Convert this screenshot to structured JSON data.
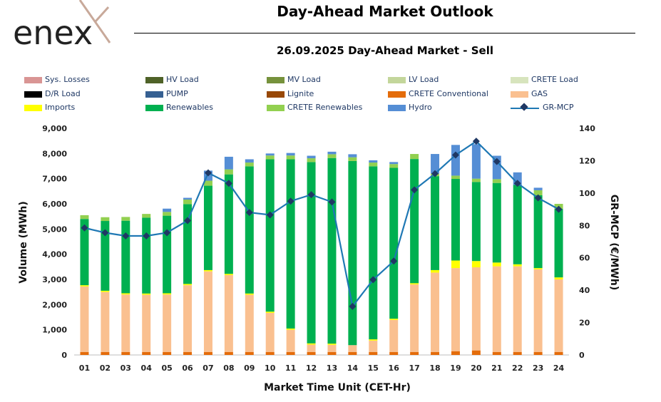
{
  "header": {
    "logo_text": "enex",
    "title": "Day-Ahead Market Outlook",
    "subtitle": "26.09.2025  Day-Ahead Market - Sell"
  },
  "colors": {
    "sys_losses": "#d99594",
    "hv_load": "#4f6228",
    "mv_load": "#76923c",
    "lv_load": "#c3d69b",
    "crete_load": "#d7e4bd",
    "dr_load": "#000000",
    "pump": "#366092",
    "lignite": "#984807",
    "crete_conventional": "#e46c0a",
    "gas": "#fac090",
    "imports": "#ffff00",
    "renewables": "#00b050",
    "crete_renewables": "#92d050",
    "hydro": "#558ed5",
    "gr_mcp": "#1f78b4",
    "gr_mcp_marker": "#1f3864"
  },
  "legend": [
    {
      "key": "sys_losses",
      "label": "Sys. Losses",
      "type": "bar"
    },
    {
      "key": "hv_load",
      "label": "HV Load",
      "type": "bar"
    },
    {
      "key": "mv_load",
      "label": "MV Load",
      "type": "bar"
    },
    {
      "key": "lv_load",
      "label": "LV Load",
      "type": "bar"
    },
    {
      "key": "crete_load",
      "label": "CRETE Load",
      "type": "bar"
    },
    {
      "key": "dr_load",
      "label": "D/R Load",
      "type": "bar"
    },
    {
      "key": "pump",
      "label": "PUMP",
      "type": "bar"
    },
    {
      "key": "lignite",
      "label": "Lignite",
      "type": "bar"
    },
    {
      "key": "crete_conventional",
      "label": "CRETE Conventional",
      "type": "bar"
    },
    {
      "key": "gas",
      "label": "GAS",
      "type": "bar"
    },
    {
      "key": "imports",
      "label": "Imports",
      "type": "bar"
    },
    {
      "key": "renewables",
      "label": "Renewables",
      "type": "bar"
    },
    {
      "key": "crete_renewables",
      "label": "CRETE Renewables",
      "type": "bar"
    },
    {
      "key": "hydro",
      "label": "Hydro",
      "type": "bar"
    },
    {
      "key": "gr_mcp",
      "label": "GR-MCP",
      "type": "line"
    }
  ],
  "chart_data": {
    "type": "bar",
    "stacked": true,
    "xlabel": "Market Time Unit (CET-Hr)",
    "ylabel": "Volume (MWh)",
    "y2label": "GR-MCP (€/MWh)",
    "ylim": [
      0,
      9000
    ],
    "y2lim": [
      0,
      140
    ],
    "yticks": [
      "0",
      "1,000",
      "2,000",
      "3,000",
      "4,000",
      "5,000",
      "6,000",
      "7,000",
      "8,000",
      "9,000"
    ],
    "y2ticks": [
      "0",
      "20",
      "40",
      "60",
      "80",
      "100",
      "120",
      "140"
    ],
    "categories": [
      "01",
      "02",
      "03",
      "04",
      "05",
      "06",
      "07",
      "08",
      "09",
      "10",
      "11",
      "12",
      "13",
      "14",
      "15",
      "16",
      "17",
      "18",
      "19",
      "20",
      "21",
      "22",
      "23",
      "24"
    ],
    "series": [
      {
        "name": "Sys. Losses",
        "key": "sys_losses",
        "values": [
          0,
          0,
          0,
          0,
          0,
          0,
          0,
          0,
          0,
          0,
          0,
          0,
          0,
          0,
          0,
          0,
          0,
          0,
          0,
          0,
          0,
          0,
          0,
          0
        ]
      },
      {
        "name": "HV Load",
        "key": "hv_load",
        "values": [
          0,
          0,
          0,
          0,
          0,
          0,
          0,
          0,
          0,
          0,
          0,
          0,
          0,
          0,
          0,
          0,
          0,
          0,
          0,
          0,
          0,
          0,
          0,
          0
        ]
      },
      {
        "name": "MV Load",
        "key": "mv_load",
        "values": [
          0,
          0,
          0,
          0,
          0,
          0,
          0,
          0,
          0,
          0,
          0,
          0,
          0,
          0,
          0,
          0,
          0,
          0,
          0,
          0,
          0,
          0,
          0,
          0
        ]
      },
      {
        "name": "LV Load",
        "key": "lv_load",
        "values": [
          0,
          0,
          0,
          0,
          0,
          0,
          0,
          0,
          0,
          0,
          0,
          0,
          0,
          0,
          0,
          0,
          0,
          0,
          0,
          0,
          0,
          0,
          0,
          0
        ]
      },
      {
        "name": "CRETE Load",
        "key": "crete_load",
        "values": [
          0,
          0,
          0,
          0,
          0,
          0,
          0,
          0,
          0,
          0,
          0,
          0,
          0,
          0,
          0,
          0,
          0,
          0,
          0,
          0,
          0,
          0,
          0,
          0
        ]
      },
      {
        "name": "D/R Load",
        "key": "dr_load",
        "values": [
          0,
          0,
          0,
          0,
          0,
          0,
          0,
          0,
          0,
          0,
          0,
          0,
          0,
          0,
          0,
          0,
          0,
          0,
          0,
          0,
          0,
          0,
          0,
          0
        ]
      },
      {
        "name": "PUMP",
        "key": "pump",
        "values": [
          0,
          0,
          0,
          0,
          0,
          0,
          0,
          0,
          0,
          0,
          0,
          0,
          0,
          0,
          0,
          0,
          0,
          0,
          0,
          0,
          0,
          0,
          0,
          0
        ]
      },
      {
        "name": "Lignite",
        "key": "lignite",
        "values": [
          0,
          0,
          0,
          0,
          0,
          0,
          0,
          0,
          0,
          0,
          0,
          0,
          0,
          0,
          0,
          0,
          0,
          0,
          0,
          0,
          0,
          0,
          0,
          0
        ]
      },
      {
        "name": "CRETE Conventional",
        "key": "crete_conventional",
        "values": [
          120,
          120,
          120,
          120,
          120,
          120,
          120,
          120,
          120,
          120,
          120,
          120,
          120,
          120,
          120,
          120,
          120,
          120,
          150,
          180,
          120,
          120,
          120,
          120
        ]
      },
      {
        "name": "GAS",
        "key": "gas",
        "values": [
          2600,
          2380,
          2280,
          2270,
          2280,
          2650,
          3200,
          3050,
          2270,
          1550,
          880,
          290,
          280,
          270,
          450,
          1270,
          2680,
          3150,
          3300,
          3300,
          3400,
          3400,
          3280,
          2880
        ]
      },
      {
        "name": "Imports",
        "key": "imports",
        "values": [
          50,
          50,
          50,
          50,
          50,
          50,
          50,
          50,
          50,
          50,
          50,
          50,
          50,
          0,
          50,
          50,
          50,
          100,
          300,
          250,
          150,
          80,
          50,
          80
        ]
      },
      {
        "name": "Renewables",
        "key": "renewables",
        "values": [
          2630,
          2770,
          2880,
          3010,
          3080,
          3170,
          3350,
          3950,
          5050,
          6050,
          6720,
          7200,
          7370,
          7310,
          6870,
          5990,
          4930,
          3730,
          3240,
          3140,
          3160,
          3150,
          2890,
          2720
        ]
      },
      {
        "name": "CRETE Renewables",
        "key": "crete_renewables",
        "values": [
          150,
          150,
          150,
          150,
          150,
          180,
          200,
          200,
          150,
          150,
          150,
          150,
          150,
          150,
          150,
          150,
          200,
          100,
          130,
          130,
          150,
          0,
          200,
          200
        ]
      },
      {
        "name": "Hydro",
        "key": "hydro",
        "values": [
          0,
          0,
          0,
          0,
          130,
          70,
          400,
          500,
          130,
          80,
          100,
          100,
          100,
          120,
          90,
          80,
          0,
          780,
          1220,
          1370,
          930,
          500,
          100,
          0
        ]
      }
    ],
    "line": {
      "name": "GR-MCP",
      "key": "gr_mcp",
      "axis": "secondary",
      "values": [
        78.5,
        75.5,
        73.5,
        73.5,
        75.5,
        83,
        112.5,
        106,
        88,
        86.5,
        95,
        99,
        94.5,
        30,
        46.5,
        58,
        102,
        112,
        123.5,
        132,
        119.5,
        106,
        97,
        90
      ]
    }
  }
}
